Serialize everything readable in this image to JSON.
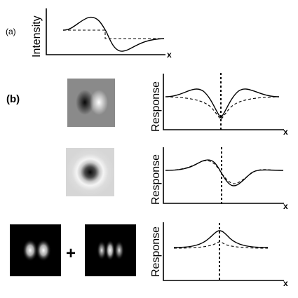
{
  "panel_a": {
    "label": "(a)",
    "ylabel": "Intensity",
    "xlabel": "x"
  },
  "panel_b": {
    "label": "(b)",
    "ylabel": "Response",
    "xlabel": "x",
    "plus": "+"
  }
}
